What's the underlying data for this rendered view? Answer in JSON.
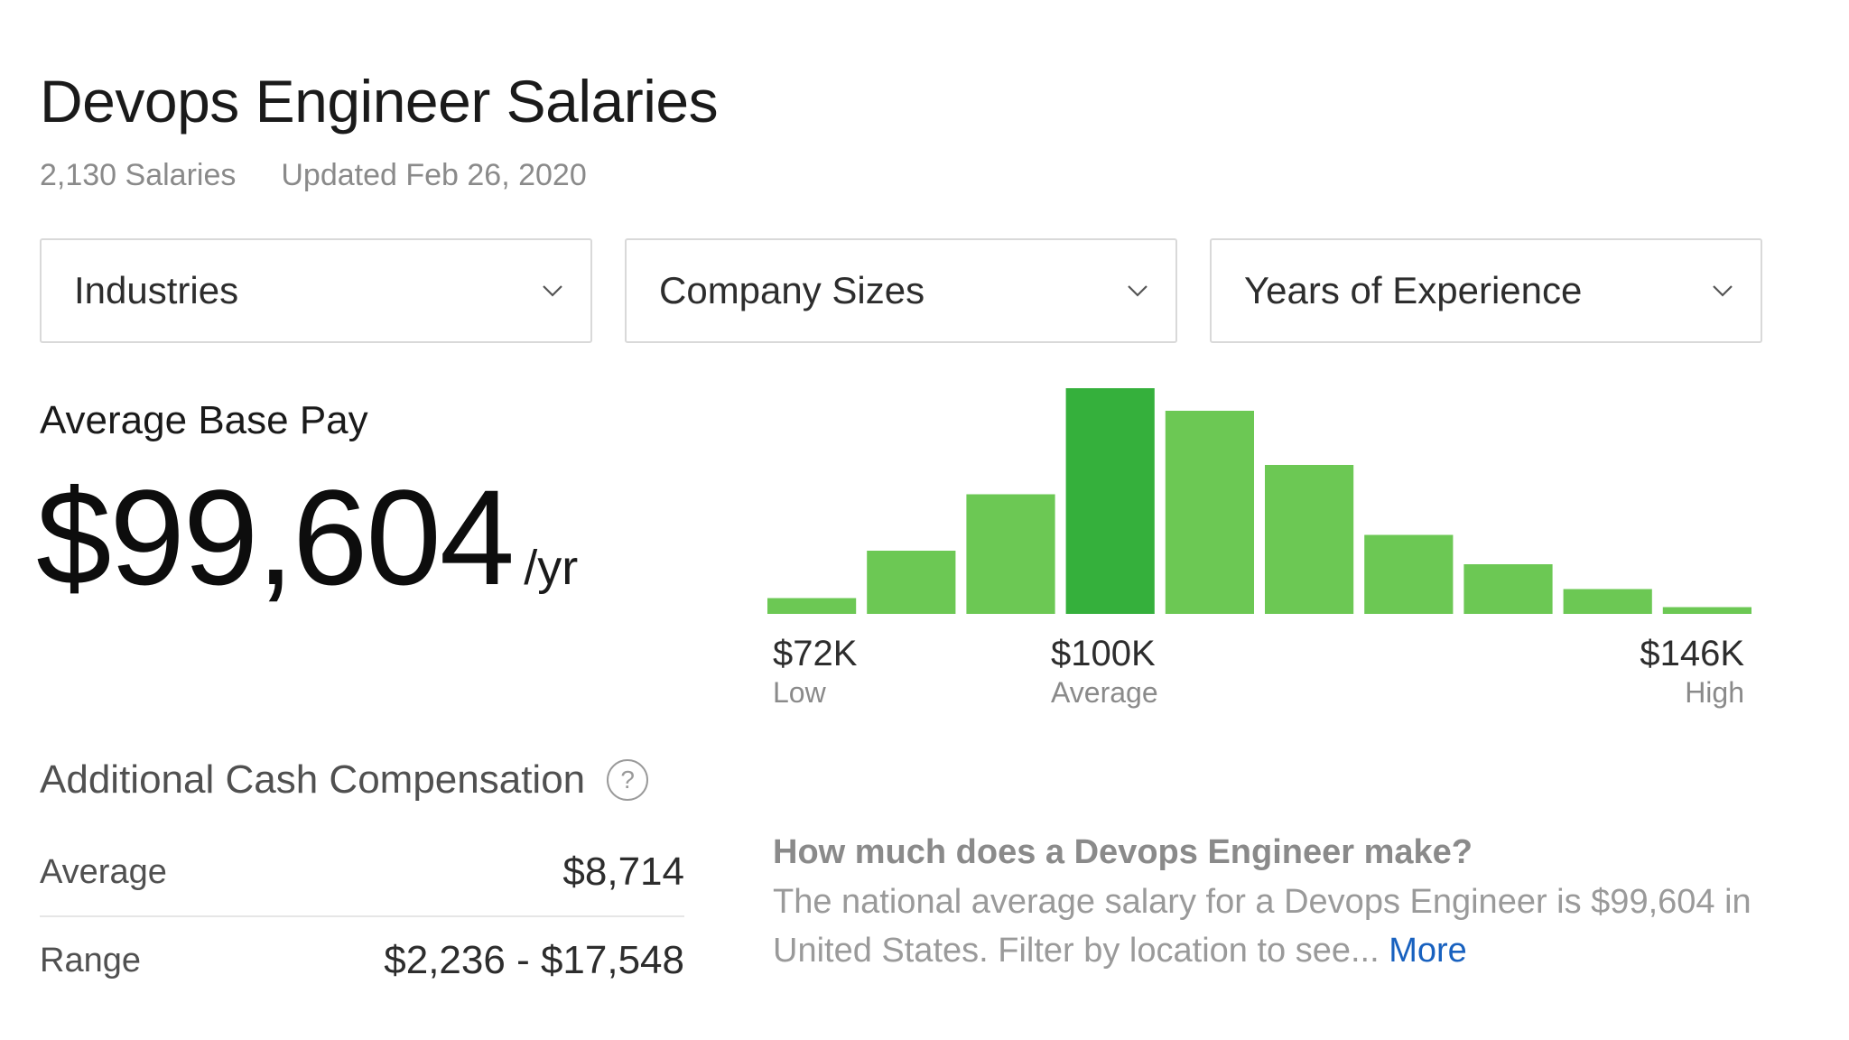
{
  "page": {
    "title": "Devops Engineer Salaries",
    "salary_count": "2,130 Salaries",
    "updated": "Updated Feb 26, 2020"
  },
  "filters": [
    {
      "label": "Industries",
      "icon": "chevron-down-icon"
    },
    {
      "label": "Company Sizes",
      "icon": "chevron-down-icon"
    },
    {
      "label": "Years of Experience",
      "icon": "chevron-down-icon"
    }
  ],
  "base_pay": {
    "label": "Average Base Pay",
    "value": "$99,604",
    "unit": "/yr"
  },
  "histogram": {
    "low_value": "$72K",
    "low_label": "Low",
    "avg_value": "$100K",
    "avg_label": "Average",
    "high_value": "$146K",
    "high_label": "High"
  },
  "colors": {
    "bar": "#6cc854",
    "bar_highlight": "#35b03c",
    "link": "#1861bf"
  },
  "chart_data": {
    "type": "bar",
    "title": "",
    "xlabel": "",
    "ylabel": "",
    "categories": [
      "1",
      "2",
      "3",
      "4",
      "5",
      "6",
      "7",
      "8",
      "9",
      "10"
    ],
    "values": [
      7,
      28,
      53,
      100,
      90,
      66,
      35,
      22,
      11,
      3
    ],
    "highlight_index": 3,
    "ylim": [
      0,
      100
    ],
    "grid": false,
    "x_tick_labels": [
      {
        "value": "$72K",
        "label": "Low"
      },
      {
        "value": "$100K",
        "label": "Average"
      },
      {
        "value": "$146K",
        "label": "High"
      }
    ]
  },
  "additional_cash": {
    "title": "Additional Cash Compensation",
    "help_icon": "question-circle-icon",
    "help_glyph": "?",
    "rows": [
      {
        "label": "Average",
        "value": "$8,714"
      },
      {
        "label": "Range",
        "value": "$2,236 - $17,548"
      }
    ]
  },
  "description": {
    "question": "How much does a Devops Engineer make?",
    "text": "The national average salary for a Devops Engineer is $99,604 in United States. Filter by location to see...",
    "more_label": "More"
  }
}
